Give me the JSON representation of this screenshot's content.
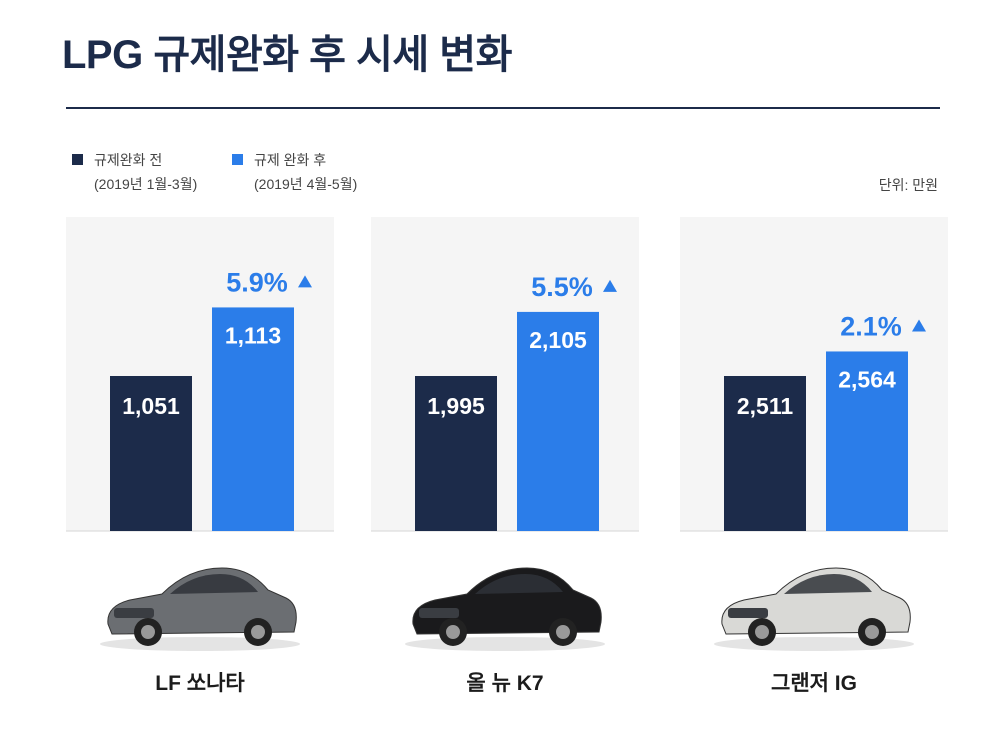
{
  "title": "LPG 규제완화 후 시세 변화",
  "legend": [
    {
      "name": "규제완화 전",
      "period": "(2019년 1월-3월)",
      "color": "#1c2b4a"
    },
    {
      "name": "규제 완화 후",
      "period": "(2019년 4월-5월)",
      "color": "#2b7de9"
    }
  ],
  "unit": "단위: 만원",
  "colors": {
    "before": "#1c2b4a",
    "after": "#2b7de9",
    "panel": "#f5f5f5",
    "label": "#1c1c1c"
  },
  "chart_data": {
    "type": "bar",
    "title": "LPG 규제완화 후 시세 변화",
    "categories": [
      "LF 쏘나타",
      "올 뉴 K7",
      "그랜저 IG"
    ],
    "series": [
      {
        "name": "규제완화 전",
        "values": [
          1051,
          1995,
          2511
        ],
        "labels": [
          "1,051",
          "1,995",
          "2,511"
        ]
      },
      {
        "name": "규제 완화 후",
        "values": [
          1113,
          2105,
          2564
        ],
        "labels": [
          "1,113",
          "2,105",
          "2,564"
        ]
      }
    ],
    "change_labels": [
      "5.9%",
      "5.5%",
      "2.1%"
    ],
    "change_icon": "up-triangle-icon",
    "unit": "만원",
    "legend_position": "top-left",
    "grid": false
  },
  "cars": [
    {
      "name": "LF 쏘나타",
      "icon": "sedan-gray-car-image",
      "body": "#6b6e72"
    },
    {
      "name": "올 뉴 K7",
      "icon": "sedan-black-car-image",
      "body": "#1a1a1c"
    },
    {
      "name": "그랜저 IG",
      "icon": "sedan-silver-car-image",
      "body": "#d9d9d6"
    }
  ]
}
